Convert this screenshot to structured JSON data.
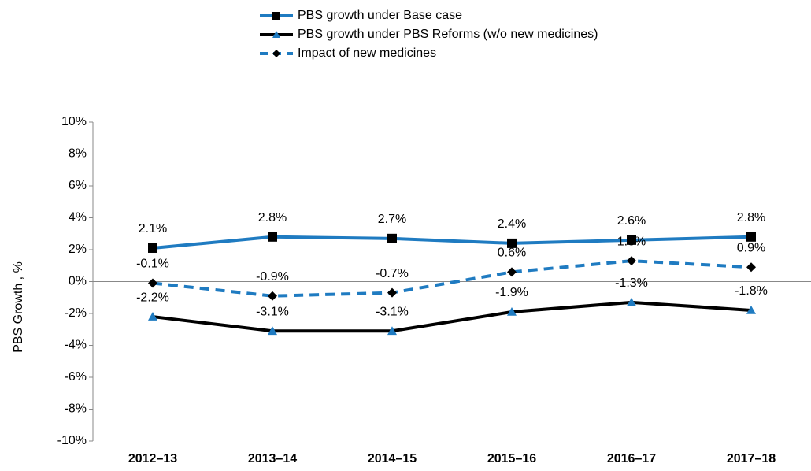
{
  "chart_data": {
    "type": "line",
    "ylabel": "PBS Growth , %",
    "categories": [
      "2012–13",
      "2013–14",
      "2014–15",
      "2015–16",
      "2016–17",
      "2017–18"
    ],
    "ylim": [
      -10,
      10
    ],
    "yticks": [
      {
        "value": -10,
        "label": "-10%"
      },
      {
        "value": -8,
        "label": "-8%"
      },
      {
        "value": -6,
        "label": "-6%"
      },
      {
        "value": -4,
        "label": "-4%"
      },
      {
        "value": -2,
        "label": "-2%"
      },
      {
        "value": 0,
        "label": "0%"
      },
      {
        "value": 2,
        "label": "2%"
      },
      {
        "value": 4,
        "label": "4%"
      },
      {
        "value": 6,
        "label": "6%"
      },
      {
        "value": 8,
        "label": "8%"
      },
      {
        "value": 10,
        "label": "10%"
      }
    ],
    "legend": "top",
    "series": [
      {
        "name": "PBS growth under Base case",
        "color": "#1f7bc1",
        "marker": "square",
        "marker_color": "#000000",
        "dashed": false,
        "values": [
          2.1,
          2.8,
          2.7,
          2.4,
          2.6,
          2.8
        ],
        "value_labels": [
          "2.1%",
          "2.8%",
          "2.7%",
          "2.4%",
          "2.6%",
          "2.8%"
        ]
      },
      {
        "name": "PBS growth under PBS Reforms (w/o new medicines)",
        "color": "#000000",
        "marker": "triangle",
        "marker_color": "#1f7bc1",
        "dashed": false,
        "values": [
          -2.2,
          -3.1,
          -3.1,
          -1.9,
          -1.3,
          -1.8
        ],
        "value_labels": [
          "-2.2%",
          "-3.1%",
          "-3.1%",
          "-1.9%",
          "-1.3%",
          "-1.8%"
        ]
      },
      {
        "name": "Impact of new medicines",
        "color": "#1f7bc1",
        "marker": "diamond",
        "marker_color": "#000000",
        "dashed": true,
        "values": [
          -0.1,
          -0.9,
          -0.7,
          0.6,
          1.3,
          0.9
        ],
        "value_labels": [
          "-0.1%",
          "-0.9%",
          "-0.7%",
          "0.6%",
          "1.3%",
          "0.9%"
        ]
      }
    ]
  }
}
